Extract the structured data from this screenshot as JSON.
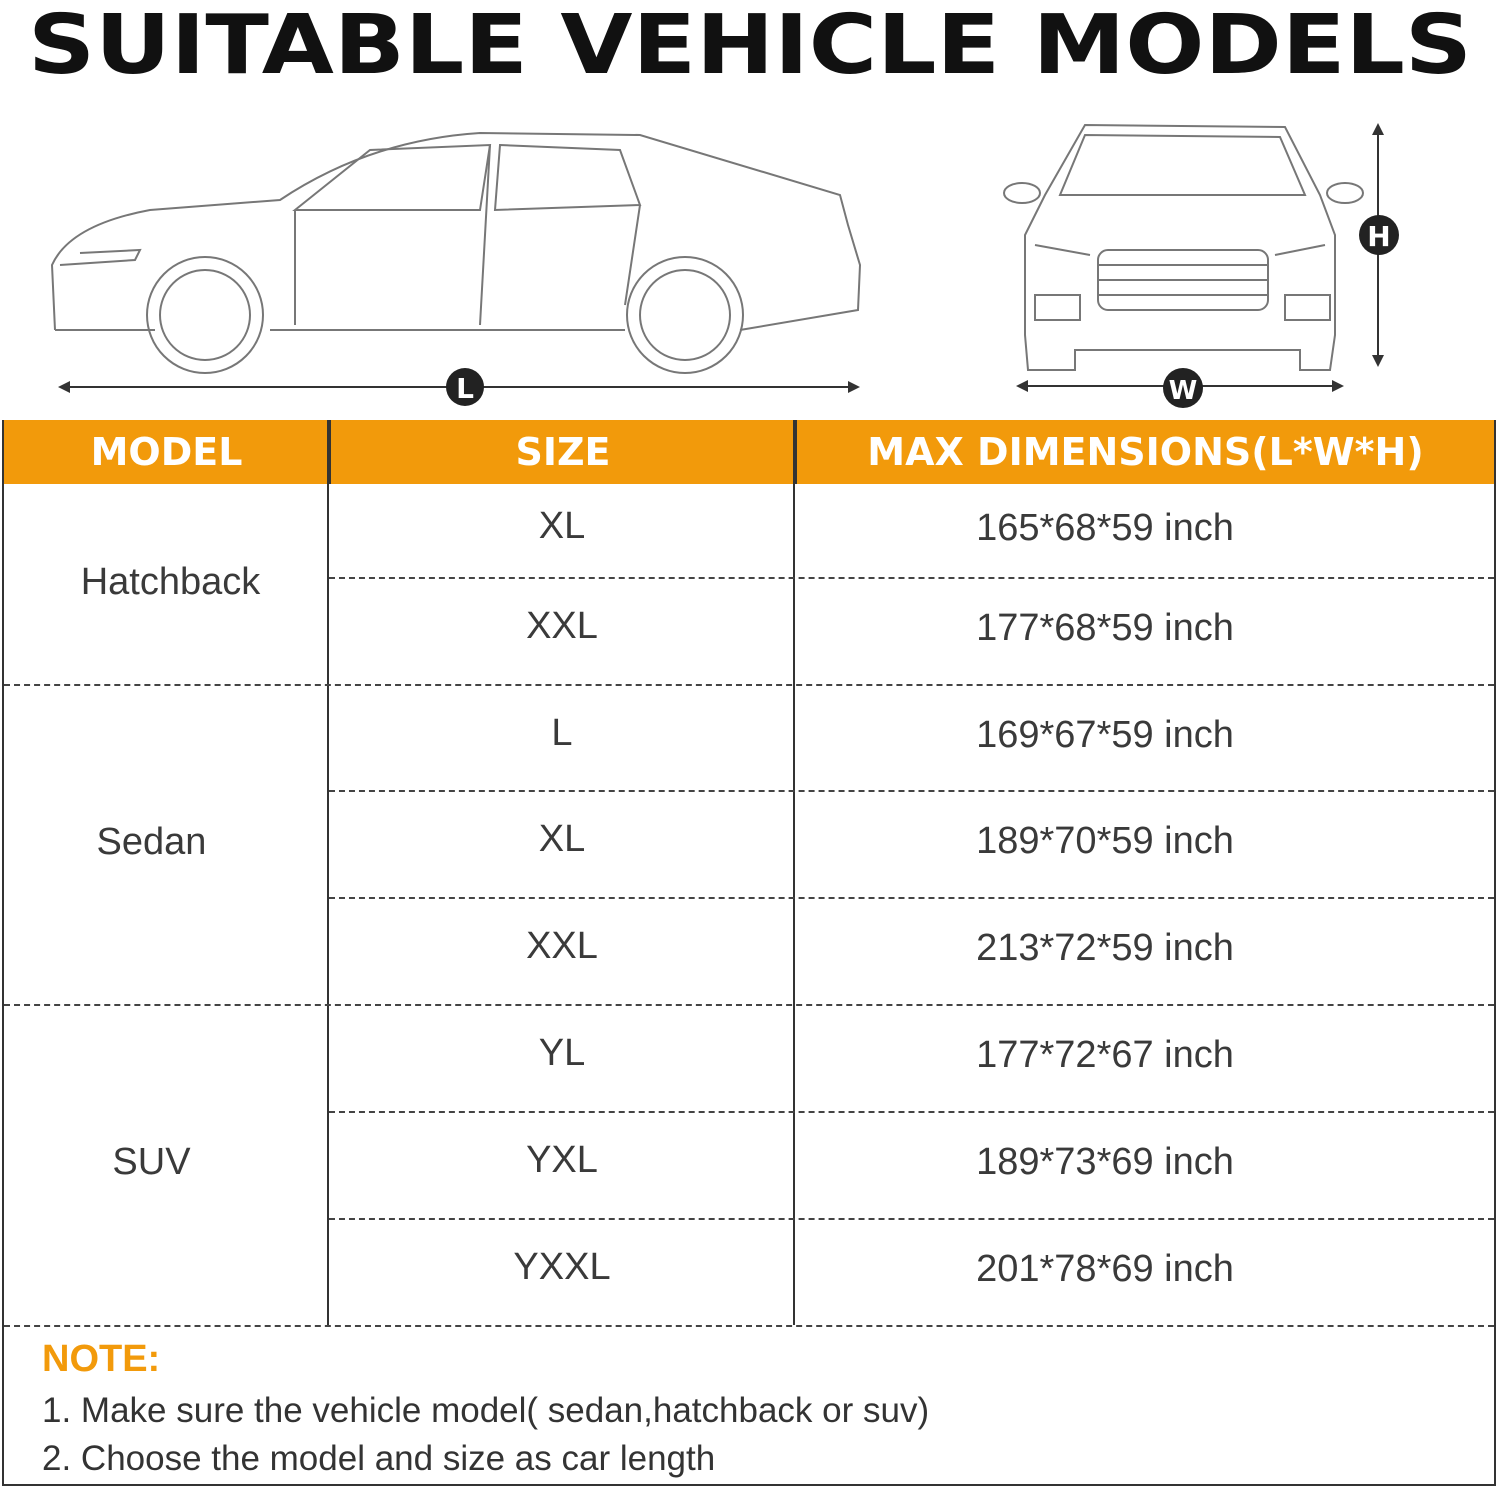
{
  "title": "SUITABLE VEHICLE MODELS",
  "diagram": {
    "length_label": "L",
    "width_label": "W",
    "height_label": "H"
  },
  "table": {
    "headers": [
      "MODEL",
      "SIZE",
      "MAX DIMENSIONS(L*W*H)"
    ],
    "groups": [
      {
        "model": "Hatchback",
        "rows": [
          {
            "size": "XL",
            "dims": "165*68*59 inch"
          },
          {
            "size": "XXL",
            "dims": "177*68*59 inch"
          }
        ]
      },
      {
        "model": "Sedan",
        "rows": [
          {
            "size": "L",
            "dims": "169*67*59 inch"
          },
          {
            "size": "XL",
            "dims": "189*70*59 inch"
          },
          {
            "size": "XXL",
            "dims": "213*72*59 inch"
          }
        ]
      },
      {
        "model": "SUV",
        "rows": [
          {
            "size": "YL",
            "dims": "177*72*67 inch"
          },
          {
            "size": "YXL",
            "dims": "189*73*69 inch"
          },
          {
            "size": "YXXL",
            "dims": "201*78*69 inch"
          }
        ]
      }
    ]
  },
  "note": {
    "title": "NOTE:",
    "lines": [
      "1. Make sure the vehicle model( sedan,hatchback or suv)",
      "2. Choose the model and size as car length"
    ]
  },
  "colors": {
    "accent": "#f29a0b",
    "text": "#3a3a3a"
  }
}
